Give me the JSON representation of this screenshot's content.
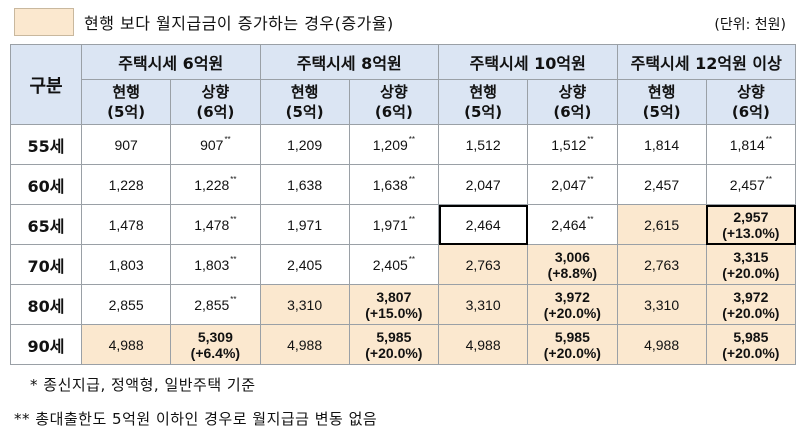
{
  "legend": {
    "color": "#fbe8cf",
    "text": "현행 보다 월지급금이 증가하는 경우(증가율)"
  },
  "unit": "(단위: 천원)",
  "table": {
    "row_header": "구분",
    "groups": [
      "주택시세 6억원",
      "주택시세 8억원",
      "주택시세 10억원",
      "주택시세 12억원 이상"
    ],
    "sub_a": "현행",
    "sub_a2": "(5억)",
    "sub_b": "상향",
    "sub_b2": "(6억)",
    "rows": [
      {
        "age": "55세",
        "cells": [
          {
            "v": "907"
          },
          {
            "v": "907",
            "s": "**"
          },
          {
            "v": "1,209"
          },
          {
            "v": "1,209",
            "s": "**"
          },
          {
            "v": "1,512"
          },
          {
            "v": "1,512",
            "s": "**"
          },
          {
            "v": "1,814"
          },
          {
            "v": "1,814",
            "s": "**"
          }
        ]
      },
      {
        "age": "60세",
        "cells": [
          {
            "v": "1,228"
          },
          {
            "v": "1,228",
            "s": "**"
          },
          {
            "v": "1,638"
          },
          {
            "v": "1,638",
            "s": "**"
          },
          {
            "v": "2,047"
          },
          {
            "v": "2,047",
            "s": "**"
          },
          {
            "v": "2,457"
          },
          {
            "v": "2,457",
            "s": "**"
          }
        ]
      },
      {
        "age": "65세",
        "cells": [
          {
            "v": "1,478"
          },
          {
            "v": "1,478",
            "s": "**"
          },
          {
            "v": "1,971"
          },
          {
            "v": "1,971",
            "s": "**"
          },
          {
            "v": "2,464",
            "box": true
          },
          {
            "v": "2,464",
            "s": "**"
          },
          {
            "v": "2,615",
            "hl": true
          },
          {
            "v": "2,957",
            "r": "(+13.0%)",
            "hl": true,
            "box": true
          }
        ]
      },
      {
        "age": "70세",
        "cells": [
          {
            "v": "1,803"
          },
          {
            "v": "1,803",
            "s": "**"
          },
          {
            "v": "2,405"
          },
          {
            "v": "2,405",
            "s": "**"
          },
          {
            "v": "2,763",
            "hl": true
          },
          {
            "v": "3,006",
            "r": "(+8.8%)",
            "hl": true
          },
          {
            "v": "2,763",
            "hl": true
          },
          {
            "v": "3,315",
            "r": "(+20.0%)",
            "hl": true
          }
        ]
      },
      {
        "age": "80세",
        "cells": [
          {
            "v": "2,855"
          },
          {
            "v": "2,855",
            "s": "**"
          },
          {
            "v": "3,310",
            "hl": true
          },
          {
            "v": "3,807",
            "r": "(+15.0%)",
            "hl": true
          },
          {
            "v": "3,310",
            "hl": true
          },
          {
            "v": "3,972",
            "r": "(+20.0%)",
            "hl": true
          },
          {
            "v": "3,310",
            "hl": true
          },
          {
            "v": "3,972",
            "r": "(+20.0%)",
            "hl": true
          }
        ]
      },
      {
        "age": "90세",
        "cells": [
          {
            "v": "4,988",
            "hl": true
          },
          {
            "v": "5,309",
            "r": "(+6.4%)",
            "hl": true
          },
          {
            "v": "4,988",
            "hl": true
          },
          {
            "v": "5,985",
            "r": "(+20.0%)",
            "hl": true
          },
          {
            "v": "4,988",
            "hl": true
          },
          {
            "v": "5,985",
            "r": "(+20.0%)",
            "hl": true
          },
          {
            "v": "4,988",
            "hl": true
          },
          {
            "v": "5,985",
            "r": "(+20.0%)",
            "hl": true
          }
        ]
      }
    ]
  },
  "notes": [
    "* 종신지급, 정액형, 일반주택 기준",
    "** 총대출한도 5억원 이하인 경우로 월지급금 변동 없음"
  ]
}
